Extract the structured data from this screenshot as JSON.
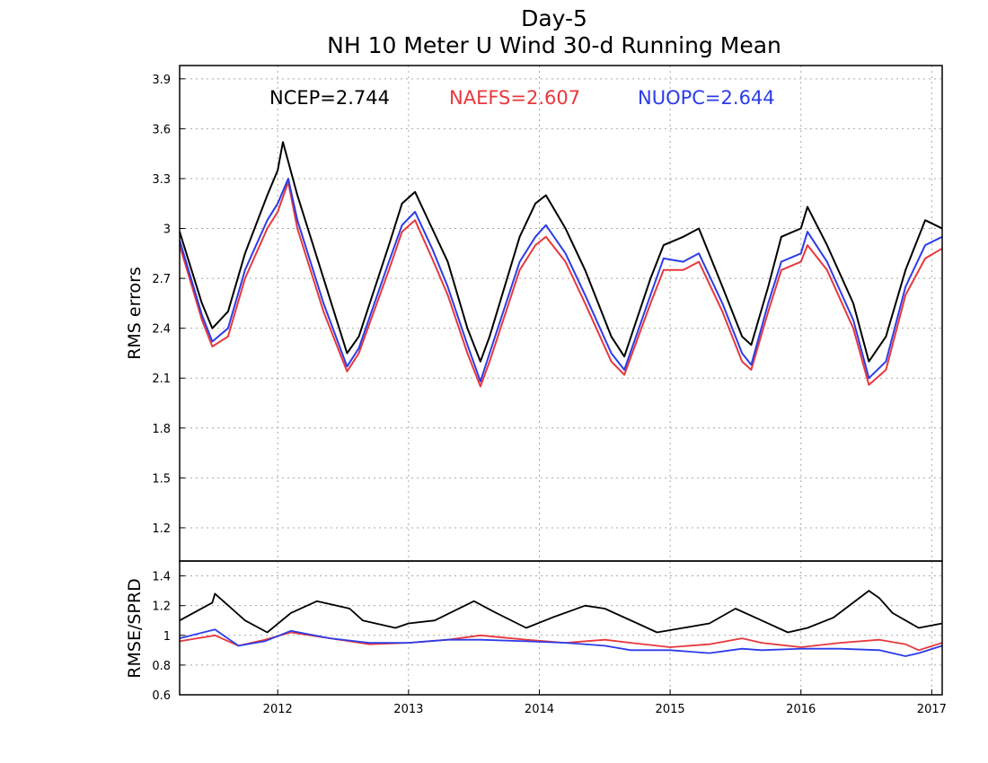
{
  "chart_data": [
    {
      "type": "line",
      "title": "Day-5",
      "subtitle": "NH 10 Meter U Wind 30-d Running Mean",
      "ylabel": "RMS errors",
      "xlim": [
        2011.25,
        2017.08
      ],
      "ylim": [
        1.0,
        3.98
      ],
      "yticks": [
        "1.2",
        "1.5",
        "1.8",
        "2.1",
        "2.4",
        "2.7",
        "3",
        "3.3",
        "3.6",
        "3.9"
      ],
      "grid": true,
      "legend_placement": "top-inside",
      "legend": [
        {
          "label": "NCEP=2.744",
          "color": "#000000"
        },
        {
          "label": "NAEFS=2.607",
          "color": "#e8383c"
        },
        {
          "label": "NUOPC=2.644",
          "color": "#2c3ce8"
        }
      ],
      "series": [
        {
          "color": "#000000",
          "x": [
            2011.25,
            2011.42,
            2011.5,
            2011.62,
            2011.75,
            2011.92,
            2012.0,
            2012.04,
            2012.15,
            2012.35,
            2012.53,
            2012.62,
            2012.85,
            2012.95,
            2013.05,
            2013.18,
            2013.3,
            2013.45,
            2013.55,
            2013.62,
            2013.85,
            2013.97,
            2014.05,
            2014.2,
            2014.35,
            2014.55,
            2014.65,
            2014.85,
            2014.95,
            2015.1,
            2015.22,
            2015.4,
            2015.55,
            2015.62,
            2015.75,
            2015.85,
            2016.0,
            2016.05,
            2016.2,
            2016.4,
            2016.52,
            2016.65,
            2016.8,
            2016.95,
            2017.08
          ],
          "values": [
            2.98,
            2.55,
            2.4,
            2.5,
            2.85,
            3.2,
            3.35,
            3.52,
            3.2,
            2.7,
            2.25,
            2.35,
            2.9,
            3.15,
            3.22,
            3.0,
            2.8,
            2.4,
            2.2,
            2.35,
            2.95,
            3.15,
            3.2,
            3.0,
            2.75,
            2.35,
            2.23,
            2.7,
            2.9,
            2.95,
            3.0,
            2.65,
            2.35,
            2.3,
            2.65,
            2.95,
            3.0,
            3.13,
            2.9,
            2.55,
            2.2,
            2.35,
            2.75,
            3.05,
            3.0
          ]
        },
        {
          "color": "#e8383c",
          "x": [
            2011.25,
            2011.42,
            2011.5,
            2011.62,
            2011.75,
            2011.92,
            2012.0,
            2012.08,
            2012.15,
            2012.35,
            2012.53,
            2012.62,
            2012.85,
            2012.95,
            2013.05,
            2013.18,
            2013.3,
            2013.45,
            2013.55,
            2013.62,
            2013.85,
            2013.97,
            2014.05,
            2014.2,
            2014.35,
            2014.55,
            2014.65,
            2014.85,
            2014.95,
            2015.1,
            2015.22,
            2015.4,
            2015.55,
            2015.62,
            2015.75,
            2015.85,
            2016.0,
            2016.05,
            2016.2,
            2016.4,
            2016.52,
            2016.65,
            2016.8,
            2016.95,
            2017.08
          ],
          "values": [
            2.9,
            2.45,
            2.29,
            2.35,
            2.7,
            3.0,
            3.1,
            3.28,
            3.0,
            2.5,
            2.14,
            2.25,
            2.75,
            2.98,
            3.05,
            2.82,
            2.6,
            2.25,
            2.05,
            2.2,
            2.75,
            2.9,
            2.95,
            2.8,
            2.55,
            2.2,
            2.12,
            2.55,
            2.75,
            2.75,
            2.8,
            2.5,
            2.2,
            2.15,
            2.5,
            2.75,
            2.8,
            2.9,
            2.75,
            2.4,
            2.06,
            2.15,
            2.6,
            2.82,
            2.88
          ]
        },
        {
          "color": "#2c3ce8",
          "x": [
            2011.25,
            2011.42,
            2011.5,
            2011.62,
            2011.75,
            2011.92,
            2012.0,
            2012.08,
            2012.15,
            2012.35,
            2012.53,
            2012.62,
            2012.85,
            2012.95,
            2013.05,
            2013.18,
            2013.3,
            2013.45,
            2013.55,
            2013.62,
            2013.85,
            2013.97,
            2014.05,
            2014.2,
            2014.35,
            2014.55,
            2014.65,
            2014.85,
            2014.95,
            2015.1,
            2015.22,
            2015.4,
            2015.55,
            2015.62,
            2015.75,
            2015.85,
            2016.0,
            2016.05,
            2016.2,
            2016.4,
            2016.52,
            2016.65,
            2016.8,
            2016.95,
            2017.08
          ],
          "values": [
            2.93,
            2.48,
            2.32,
            2.4,
            2.75,
            3.05,
            3.15,
            3.3,
            3.05,
            2.55,
            2.17,
            2.28,
            2.8,
            3.02,
            3.1,
            2.88,
            2.65,
            2.3,
            2.08,
            2.25,
            2.8,
            2.95,
            3.02,
            2.85,
            2.6,
            2.25,
            2.15,
            2.6,
            2.82,
            2.8,
            2.85,
            2.55,
            2.25,
            2.18,
            2.55,
            2.8,
            2.85,
            2.98,
            2.8,
            2.45,
            2.1,
            2.2,
            2.65,
            2.9,
            2.95
          ]
        }
      ]
    },
    {
      "type": "line",
      "ylabel": "RMSE/SPRD",
      "xlim": [
        2011.25,
        2017.08
      ],
      "ylim": [
        0.6,
        1.5
      ],
      "yticks": [
        "0.6",
        "0.8",
        "1",
        "1.2",
        "1.4"
      ],
      "xticks": [
        "2012",
        "2013",
        "2014",
        "2015",
        "2016",
        "2017"
      ],
      "grid": true,
      "series": [
        {
          "color": "#000000",
          "x": [
            2011.25,
            2011.5,
            2011.52,
            2011.75,
            2011.92,
            2012.1,
            2012.3,
            2012.55,
            2012.65,
            2012.9,
            2013.0,
            2013.2,
            2013.5,
            2013.65,
            2013.9,
            2014.1,
            2014.35,
            2014.5,
            2014.75,
            2014.9,
            2015.1,
            2015.3,
            2015.5,
            2015.7,
            2015.9,
            2016.05,
            2016.25,
            2016.52,
            2016.6,
            2016.7,
            2016.9,
            2017.08
          ],
          "values": [
            1.1,
            1.22,
            1.28,
            1.1,
            1.02,
            1.15,
            1.23,
            1.18,
            1.1,
            1.05,
            1.08,
            1.1,
            1.23,
            1.16,
            1.05,
            1.12,
            1.2,
            1.18,
            1.08,
            1.02,
            1.05,
            1.08,
            1.18,
            1.1,
            1.02,
            1.05,
            1.12,
            1.3,
            1.25,
            1.15,
            1.05,
            1.08
          ]
        },
        {
          "color": "#e8383c",
          "x": [
            2011.25,
            2011.52,
            2011.7,
            2011.9,
            2012.1,
            2012.4,
            2012.7,
            2013.0,
            2013.3,
            2013.55,
            2013.9,
            2014.2,
            2014.5,
            2014.7,
            2015.0,
            2015.3,
            2015.55,
            2015.7,
            2016.0,
            2016.3,
            2016.6,
            2016.8,
            2016.9,
            2017.08
          ],
          "values": [
            0.96,
            1.0,
            0.93,
            0.97,
            1.02,
            0.98,
            0.94,
            0.95,
            0.97,
            1.0,
            0.97,
            0.95,
            0.97,
            0.95,
            0.92,
            0.94,
            0.98,
            0.95,
            0.92,
            0.95,
            0.97,
            0.94,
            0.9,
            0.95
          ]
        },
        {
          "color": "#2c3ce8",
          "x": [
            2011.25,
            2011.52,
            2011.7,
            2011.9,
            2012.1,
            2012.4,
            2012.7,
            2013.0,
            2013.3,
            2013.55,
            2013.9,
            2014.2,
            2014.5,
            2014.7,
            2015.0,
            2015.3,
            2015.55,
            2015.7,
            2016.0,
            2016.3,
            2016.6,
            2016.8,
            2016.9,
            2017.08
          ],
          "values": [
            0.98,
            1.04,
            0.93,
            0.96,
            1.03,
            0.98,
            0.95,
            0.95,
            0.97,
            0.97,
            0.96,
            0.95,
            0.93,
            0.9,
            0.9,
            0.88,
            0.91,
            0.9,
            0.91,
            0.91,
            0.9,
            0.86,
            0.88,
            0.93
          ]
        }
      ]
    }
  ]
}
